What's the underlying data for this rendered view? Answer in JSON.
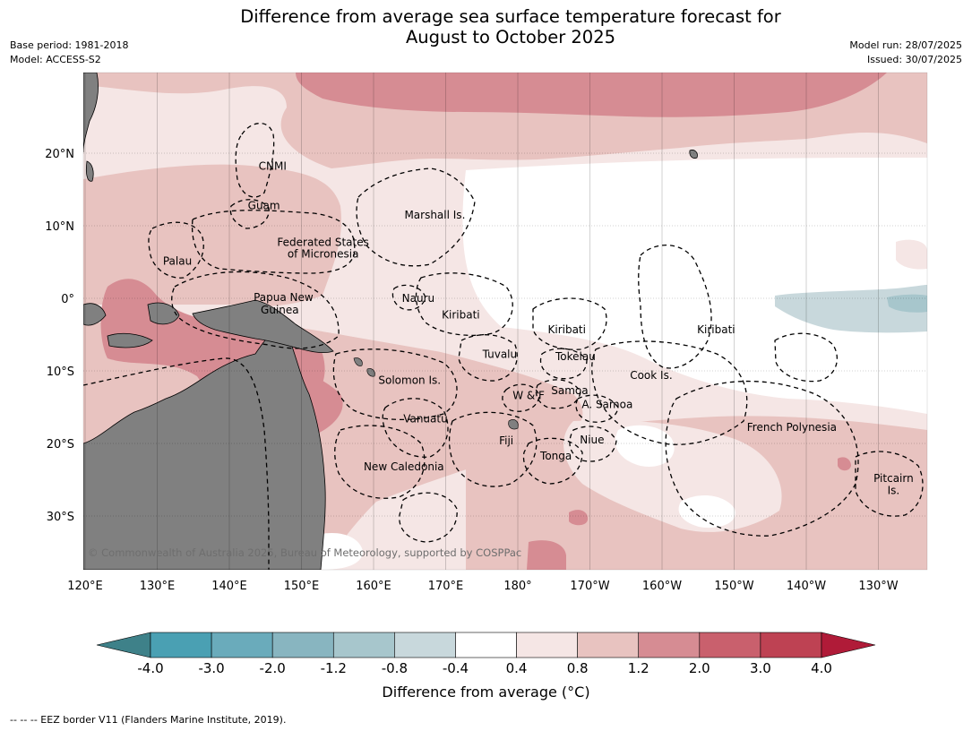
{
  "title": {
    "line1": "Difference from average sea surface temperature forecast for",
    "line2": "August to October 2025"
  },
  "meta": {
    "base_period": "Base period: 1981-2018",
    "model": "Model: ACCESS-S2",
    "model_run": "Model run: 28/07/2025",
    "issued": "Issued: 30/07/2025"
  },
  "axes": {
    "longitude_ticks": [
      "120°E",
      "130°E",
      "140°E",
      "150°E",
      "160°E",
      "170°E",
      "180°",
      "170°W",
      "160°W",
      "150°W",
      "140°W",
      "130°W"
    ],
    "latitude_ticks": [
      "20°N",
      "10°N",
      "0°",
      "10°S",
      "20°S",
      "30°S"
    ]
  },
  "regions": [
    {
      "name": "CNMI",
      "lon": 146,
      "lat": 18.2
    },
    {
      "name": "Guam",
      "lon": 144.8,
      "lat": 12.8
    },
    {
      "name": "Marshall Is.",
      "lon": 168.5,
      "lat": 11.5
    },
    {
      "name": "Federated States",
      "lon": 153,
      "lat": 7.7
    },
    {
      "name": "of Micronesia",
      "lon": 153,
      "lat": 6.1
    },
    {
      "name": "Palau",
      "lon": 132.8,
      "lat": 5.1
    },
    {
      "name": "Nauru",
      "lon": 166.2,
      "lat": 0.0
    },
    {
      "name": "Papua New",
      "lon": 147.5,
      "lat": 0.1
    },
    {
      "name": "Guinea",
      "lon": 147,
      "lat": -1.6
    },
    {
      "name": "Kiribati",
      "lon": 172.1,
      "lat": -2.3
    },
    {
      "name": "Kiribati",
      "lon": -173.2,
      "lat": -4.3
    },
    {
      "name": "Kiribati",
      "lon": -152.5,
      "lat": -4.3
    },
    {
      "name": "Tuvalu",
      "lon": 177.5,
      "lat": -7.7
    },
    {
      "name": "Tokelau",
      "lon": -172,
      "lat": -8.0
    },
    {
      "name": "Cook Is.",
      "lon": -161.5,
      "lat": -10.6
    },
    {
      "name": "Solomon Is.",
      "lon": 165,
      "lat": -11.3
    },
    {
      "name": "Samoa",
      "lon": -172.8,
      "lat": -12.7
    },
    {
      "name": "W & F",
      "lon": -178.5,
      "lat": -13.4
    },
    {
      "name": "A. Samoa",
      "lon": -167.6,
      "lat": -14.6
    },
    {
      "name": "Vanuatu",
      "lon": 167.2,
      "lat": -16.6
    },
    {
      "name": "French Polynesia",
      "lon": -142,
      "lat": -17.8
    },
    {
      "name": "Fiji",
      "lon": 178.4,
      "lat": -19.6
    },
    {
      "name": "Niue",
      "lon": -169.7,
      "lat": -19.5
    },
    {
      "name": "Tonga",
      "lon": -174.7,
      "lat": -21.7
    },
    {
      "name": "New Caledonia",
      "lon": 164.2,
      "lat": -23.2
    },
    {
      "name": "Pitcairn",
      "lon": -127.9,
      "lat": -24.8
    },
    {
      "name": "Is.",
      "lon": -127.9,
      "lat": -26.5
    }
  ],
  "copyright": "© Commonwealth of Australia 2025, Bureau of Meteorology, supported by COSPPac",
  "colorbar": {
    "ticks": [
      "-4.0",
      "-3.0",
      "-2.0",
      "-1.2",
      "-0.8",
      "-0.4",
      "0.4",
      "0.8",
      "1.2",
      "2.0",
      "3.0",
      "4.0"
    ],
    "colors": [
      "#3e8189",
      "#4aa0b3",
      "#6aabbb",
      "#88b5c0",
      "#a7c6cc",
      "#c8d8dc",
      "#ffffff",
      "#f5e6e5",
      "#e8c3c0",
      "#d68c93",
      "#c9606d",
      "#be4253",
      "#b01b38"
    ],
    "label": "Difference from average (°C)"
  },
  "map_colors": {
    "land": "#808080",
    "light_pink": "#f5e6e5",
    "pink": "#e8c3c0",
    "rose": "#d68c93",
    "blue_grey": "#c8d8dc",
    "blue": "#a7c6cc"
  },
  "footer": "--  --  -- EEZ border V11 (Flanders Marine Institute, 2019)."
}
